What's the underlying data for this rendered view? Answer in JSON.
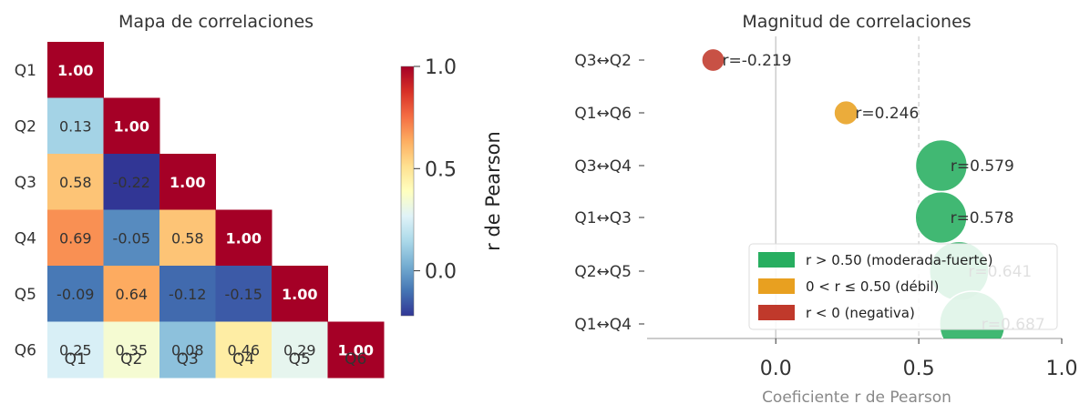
{
  "chart_data": [
    {
      "type": "heatmap",
      "title": "Mapa de correlaciones",
      "row_labels": [
        "Q1",
        "Q2",
        "Q3",
        "Q4",
        "Q5",
        "Q6"
      ],
      "col_labels": [
        "Q1",
        "Q2",
        "Q3",
        "Q4",
        "Q5",
        "Q6"
      ],
      "triangle": "lower",
      "values": [
        [
          1.0
        ],
        [
          0.13,
          1.0
        ],
        [
          0.58,
          -0.22,
          1.0
        ],
        [
          0.69,
          -0.05,
          0.58,
          1.0
        ],
        [
          -0.09,
          0.64,
          -0.12,
          -0.15,
          1.0
        ],
        [
          0.25,
          0.35,
          0.08,
          0.46,
          0.29,
          1.0
        ]
      ],
      "cell_labels": [
        [
          "1.00"
        ],
        [
          "0.13",
          "1.00"
        ],
        [
          "0.58",
          "-0.22",
          "1.00"
        ],
        [
          "0.69",
          "-0.05",
          "0.58",
          "1.00"
        ],
        [
          "-0.09",
          "0.64",
          "-0.12",
          "-0.15",
          "1.00"
        ],
        [
          "0.25",
          "0.35",
          "0.08",
          "0.46",
          "0.29",
          "1.00"
        ]
      ],
      "colorbar": {
        "label": "r de Pearson",
        "ticks": [
          0.0,
          0.5,
          1.0
        ],
        "tick_labels": [
          "0.0",
          "0.5",
          "1.0"
        ],
        "range": [
          -0.22,
          1.0
        ],
        "colormap": "RdYlBu_r"
      }
    },
    {
      "type": "scatter",
      "title": "Magnitud de correlaciones",
      "xlabel": "Coeficiente r de Pearson",
      "xlim": [
        -0.45,
        1.0
      ],
      "xticks": [
        0.0,
        0.5,
        1.0
      ],
      "xtick_labels": [
        "0.0",
        "0.5",
        "1.0"
      ],
      "reference_lines": [
        0.0,
        0.5
      ],
      "points": [
        {
          "pair": "Q3↔Q2",
          "r": -0.219,
          "label": "r=-0.219",
          "color": "#c0392b"
        },
        {
          "pair": "Q1↔Q6",
          "r": 0.246,
          "label": "r=0.246",
          "color": "#e8a020"
        },
        {
          "pair": "Q3↔Q4",
          "r": 0.579,
          "label": "r=0.579",
          "color": "#27ae60"
        },
        {
          "pair": "Q1↔Q3",
          "r": 0.578,
          "label": "r=0.578",
          "color": "#27ae60"
        },
        {
          "pair": "Q2↔Q5",
          "r": 0.641,
          "label": "r=0.641",
          "color": "#27ae60"
        },
        {
          "pair": "Q1↔Q4",
          "r": 0.687,
          "label": "r=0.687",
          "color": "#27ae60"
        }
      ],
      "legend": {
        "placement": "lower-right",
        "entries": [
          {
            "label": "r > 0.50 (moderada-fuerte)",
            "color": "#27ae60"
          },
          {
            "label": "0 < r ≤ 0.50 (débil)",
            "color": "#e8a020"
          },
          {
            "label": "r < 0 (negativa)",
            "color": "#c0392b"
          }
        ]
      }
    }
  ]
}
